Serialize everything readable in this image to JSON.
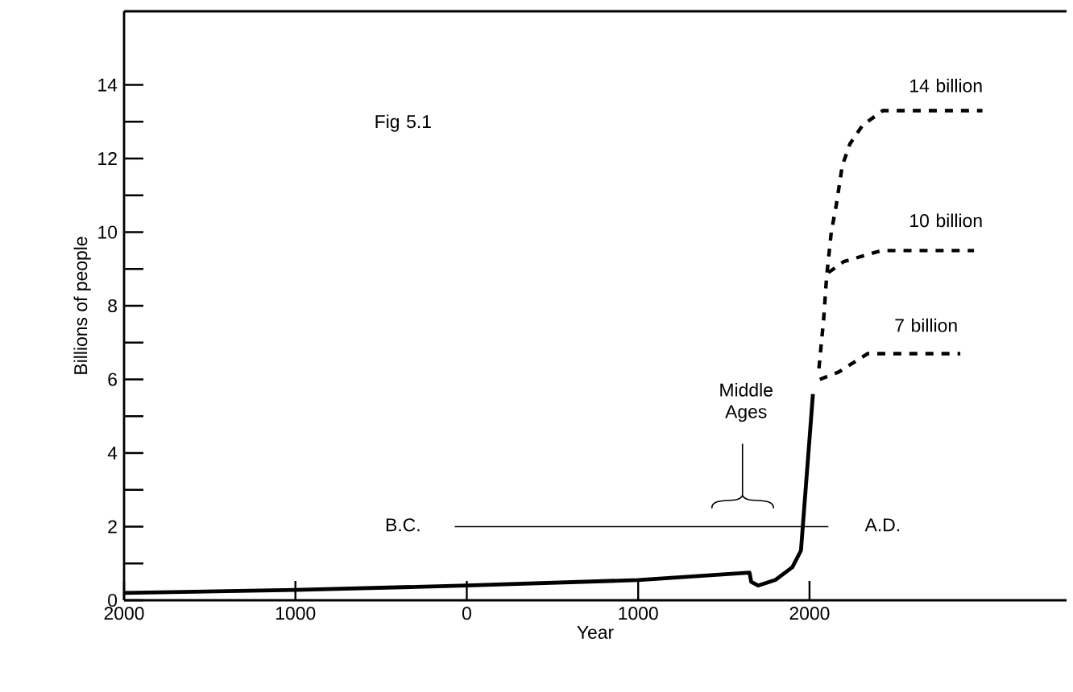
{
  "chart_data": {
    "type": "line",
    "xlabel": "Year",
    "ylabel": "Billions of people",
    "xlim": [
      -2000,
      3500
    ],
    "ylim": [
      0,
      16
    ],
    "xticks": [
      {
        "value": -2000,
        "label": "2000"
      },
      {
        "value": -1000,
        "label": "1000"
      },
      {
        "value": 0,
        "label": "0"
      },
      {
        "value": 1000,
        "label": "1000"
      },
      {
        "value": 2000,
        "label": "2000"
      }
    ],
    "yticks": [
      0,
      {
        "value": 1,
        "label": null
      },
      2,
      {
        "value": 3,
        "label": null
      },
      4,
      {
        "value": 5,
        "label": null
      },
      6,
      {
        "value": 7,
        "label": null
      },
      8,
      {
        "value": 9,
        "label": null
      },
      10,
      {
        "value": 11,
        "label": null
      },
      12,
      {
        "value": 13,
        "label": null
      },
      14
    ],
    "series": [
      {
        "color": "#000000",
        "line_style": "solid",
        "x": [
          -2000,
          -1000,
          0,
          1000,
          1650,
          1660,
          1700,
          1800,
          1900,
          1950,
          2020
        ],
        "values": [
          0.2,
          0.28,
          0.4,
          0.55,
          0.75,
          0.5,
          0.4,
          0.55,
          0.9,
          1.35,
          5.6
        ]
      },
      {
        "color": "#000000",
        "line_style": "dashed",
        "x": [
          2055,
          2082,
          2100,
          2127,
          2155,
          2191,
          2236,
          2309,
          2427,
          3009
        ],
        "values": [
          6.3,
          7.6,
          8.8,
          10.0,
          10.7,
          11.8,
          12.4,
          12.9,
          13.3,
          13.3
        ]
      },
      {
        "color": "#000000",
        "line_style": "dashed",
        "x": [
          2110,
          2200,
          2420,
          2960
        ],
        "values": [
          8.9,
          9.2,
          9.5,
          9.5
        ]
      },
      {
        "color": "#000000",
        "line_style": "dashed",
        "x": [
          2060,
          2170,
          2340,
          2880
        ],
        "values": [
          6.0,
          6.2,
          6.7,
          6.7
        ]
      },
      {
        "color": "#000000",
        "line_style": "solid",
        "x": [
          -70,
          2110
        ],
        "values": [
          2,
          2
        ]
      }
    ],
    "annotations": [
      "Fig 5.1",
      "14 billion",
      "10 billion",
      "7 billion",
      "B.C.",
      "A.D.",
      "Middle Ages"
    ],
    "grid": false,
    "marker": "none"
  }
}
